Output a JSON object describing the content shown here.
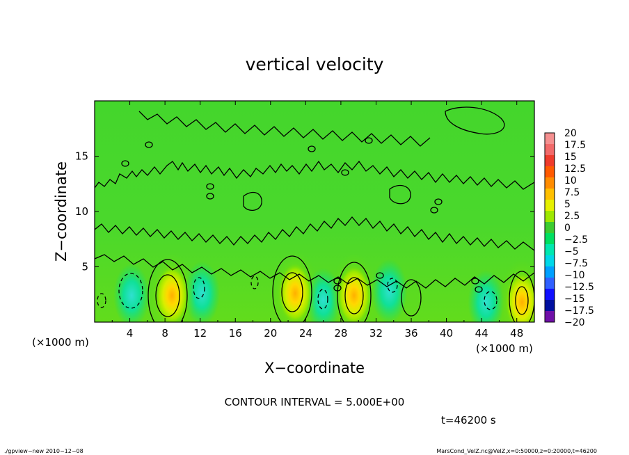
{
  "chart_data": {
    "type": "heatmap",
    "title": "vertical velocity",
    "xlabel": "X−coordinate",
    "ylabel": "Z−coordinate",
    "x_unit_left": "(×1000 m)",
    "x_unit_right": "(×1000 m)",
    "xlim": [
      0,
      50
    ],
    "ylim": [
      0,
      20
    ],
    "x_ticks": [
      4,
      8,
      12,
      16,
      20,
      24,
      28,
      32,
      36,
      40,
      44,
      48
    ],
    "x_tick_labels": [
      "4",
      "8",
      "12",
      "16",
      "20",
      "24",
      "28",
      "32",
      "36",
      "40",
      "44",
      "48"
    ],
    "y_ticks": [
      5,
      10,
      15
    ],
    "y_tick_labels": [
      "5",
      "10",
      "15"
    ],
    "colorbar": {
      "levels": [
        20,
        17.5,
        15,
        12.5,
        10,
        7.5,
        5,
        2.5,
        0,
        -2.5,
        -5,
        -7.5,
        -10,
        -12.5,
        -15,
        -17.5,
        -20
      ],
      "level_labels": [
        "20",
        "17.5",
        "15",
        "12.5",
        "10",
        "7.5",
        "5",
        "2.5",
        "0",
        "−2.5",
        "−5",
        "−7.5",
        "−10",
        "−12.5",
        "−15",
        "−17.5",
        "−20"
      ],
      "colors": [
        "#f59090",
        "#f26a6a",
        "#ef3b2c",
        "#ff5a00",
        "#ff8c00",
        "#ffc000",
        "#e6f000",
        "#9ee800",
        "#3ccc30",
        "#00e060",
        "#00e8b0",
        "#00d8e8",
        "#00a0ff",
        "#3060ff",
        "#1010ff",
        "#0010a0",
        "#7010a8"
      ]
    },
    "field": {
      "background_value": 1.0,
      "updrafts": [
        {
          "x": 8.8,
          "z": 2.4,
          "peak": 9.0
        },
        {
          "x": 22.8,
          "z": 2.6,
          "peak": 8.5
        },
        {
          "x": 29.5,
          "z": 2.4,
          "peak": 9.0
        },
        {
          "x": 48.6,
          "z": 1.8,
          "peak": 8.0
        }
      ],
      "downdrafts": [
        {
          "x": 4.2,
          "z": 2.4,
          "peak": -5.5
        },
        {
          "x": 12.2,
          "z": 2.6,
          "peak": -4.0
        },
        {
          "x": 26.0,
          "z": 2.0,
          "peak": -4.0
        },
        {
          "x": 33.5,
          "z": 2.8,
          "peak": -3.5
        },
        {
          "x": 44.5,
          "z": 1.8,
          "peak": -4.5
        }
      ]
    },
    "contour_interval_text": "CONTOUR INTERVAL = 5.000E+00",
    "time_text": "t=46200 s"
  },
  "footer": {
    "left": "./gpview−new   2010−12−08",
    "right": "MarsCond_VelZ.nc@VelZ,x=0:50000,z=0:20000,t=46200"
  }
}
